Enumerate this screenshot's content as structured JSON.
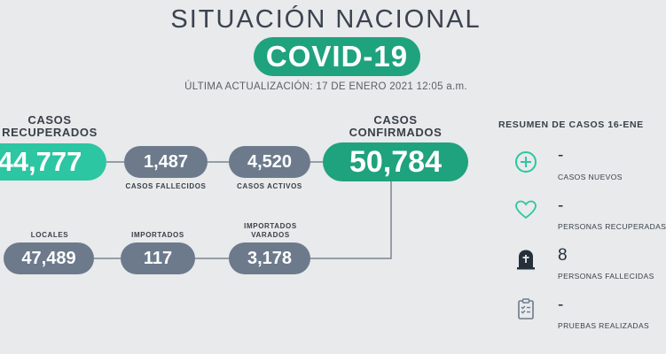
{
  "header": {
    "title": "SITUACIÓN NACIONAL",
    "badge": "COVID-19",
    "updated": "ÚLTIMA ACTUALIZACIÓN: 17 DE ENERO 2021 12:05 a.m."
  },
  "top_row": {
    "recuperados": {
      "label": "CASOS RECUPERADOS",
      "value": "44,777"
    },
    "fallecidos": {
      "label": "CASOS FALLECIDOS",
      "value": "1,487"
    },
    "activos": {
      "label": "CASOS ACTIVOS",
      "value": "4,520"
    },
    "confirmados": {
      "label": "CASOS CONFIRMADOS",
      "value": "50,784"
    }
  },
  "bottom_row": {
    "locales": {
      "label": "LOCALES",
      "value": "47,489"
    },
    "importados": {
      "label": "IMPORTADOS",
      "value": "117"
    },
    "varados": {
      "label": "IMPORTADOS VARADOS",
      "value": "3,178"
    }
  },
  "resumen": {
    "title": "RESUMEN DE CASOS 16-ENE",
    "items": [
      {
        "icon": "plus-circle-icon",
        "value": "-",
        "label": "CASOS NUEVOS"
      },
      {
        "icon": "heart-icon",
        "value": "-",
        "label": "PERSONAS RECUPERADAS"
      },
      {
        "icon": "tombstone-icon",
        "value": "8",
        "label": "PERSONAS FALLECIDAS"
      },
      {
        "icon": "clipboard-check-icon",
        "value": "-",
        "label": "PRUEBAS REALIZADAS"
      }
    ]
  },
  "colors": {
    "background": "#e8eaeb",
    "brand_green": "#1fa27e",
    "mint": "#2cc6a2",
    "slate": "#6c7a8c",
    "text": "#3a4049"
  }
}
